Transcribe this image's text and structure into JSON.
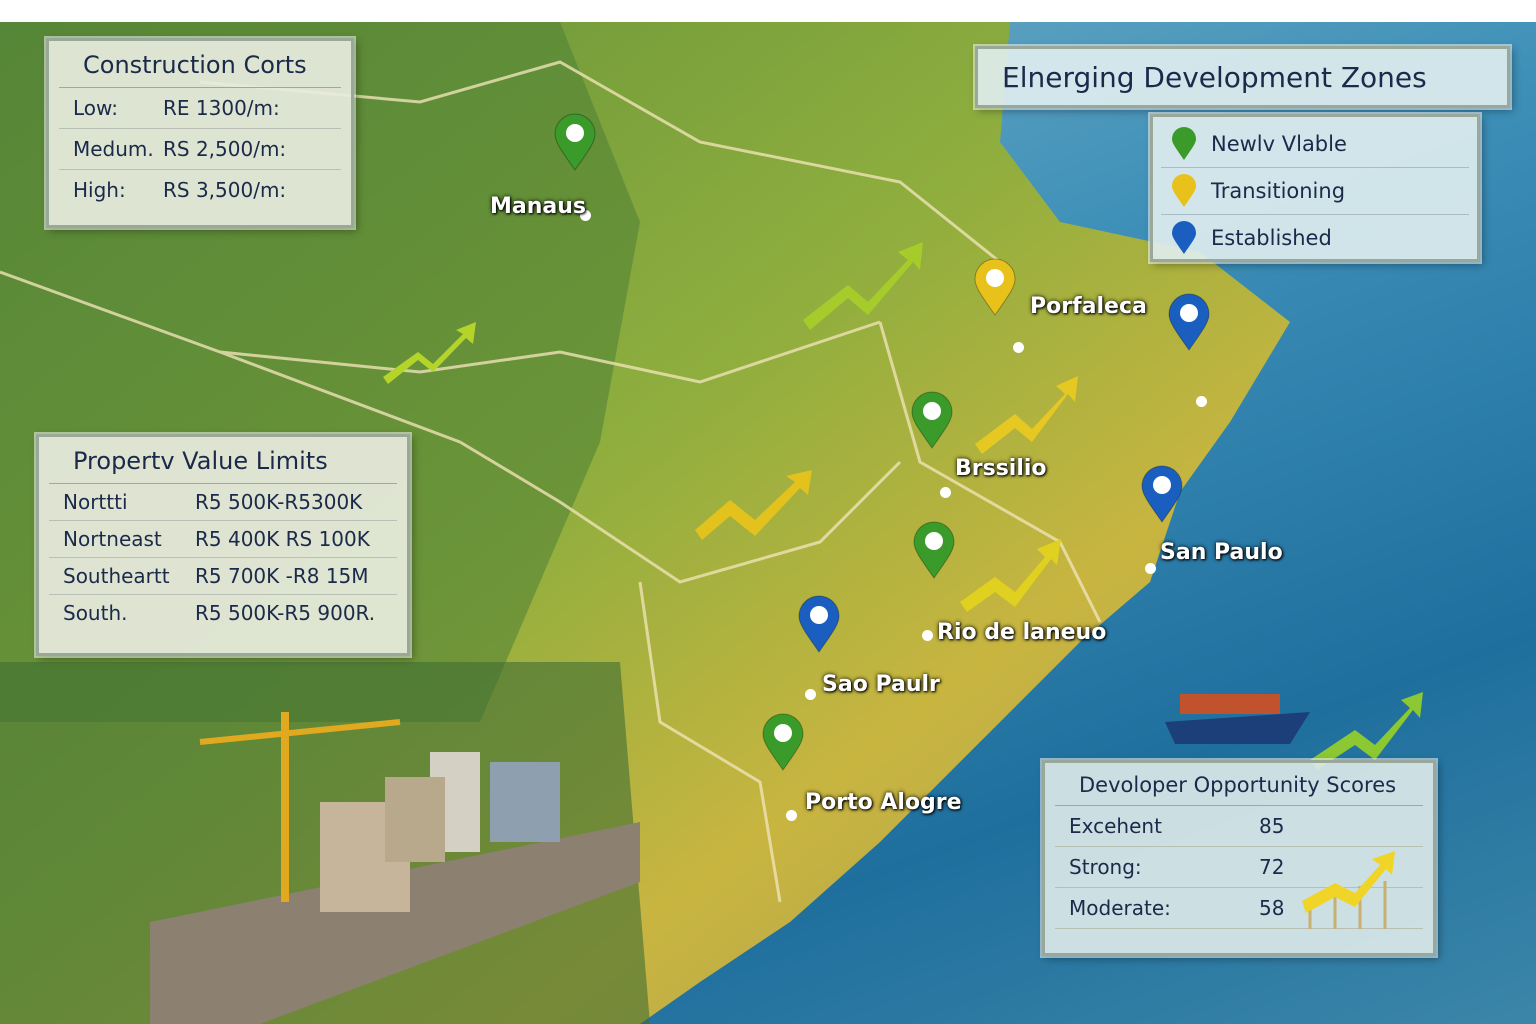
{
  "title": "Elnerging Development Zones",
  "colors": {
    "newly_viable": "#3a9a2a",
    "transitioning": "#e8c21a",
    "established": "#1a5fc0",
    "land": "#7ea640",
    "ocean": "#2a7bab"
  },
  "legend": [
    {
      "label": "Newlv Vlable",
      "color": "#3a9a2a",
      "icon": "map-pin-icon"
    },
    {
      "label": "Transitioning",
      "color": "#e8c21a",
      "icon": "map-pin-icon"
    },
    {
      "label": "Established",
      "color": "#1a5fc0",
      "icon": "map-pin-icon"
    }
  ],
  "construction_costs": {
    "title": "Construction Corts",
    "rows": [
      {
        "label": "Low:",
        "value": "RE 1300/m:"
      },
      {
        "label": "Medum.",
        "value": "RS 2,500/m:"
      },
      {
        "label": "High:",
        "value": "RS 3,500/m:"
      }
    ]
  },
  "property_limits": {
    "title": "Propertv Value Limits",
    "rows": [
      {
        "label": "Norttti",
        "value": "R5 500K-R5300K"
      },
      {
        "label": "Nortneast",
        "value": "R5 400K  RS 100K"
      },
      {
        "label": "Southeartt",
        "value": "R5 700K -R8 15M"
      },
      {
        "label": "South.",
        "value": "R5 500K-R5 900R."
      }
    ]
  },
  "opportunity_scores": {
    "title": "Devoloper Opportunity Scores",
    "rows": [
      {
        "label": "Excehent",
        "value": "85"
      },
      {
        "label": "Strong:",
        "value": "72"
      },
      {
        "label": "Moderate:",
        "value": "58"
      }
    ]
  },
  "cities": [
    {
      "name": "Manaus",
      "status": "newly_viable"
    },
    {
      "name": "Porfaleca",
      "status": "transitioning"
    },
    {
      "name": "",
      "status": "established"
    },
    {
      "name": "Brssilio",
      "status": "newly_viable"
    },
    {
      "name": "San Paulo",
      "status": "established"
    },
    {
      "name": "Rio de laneuo",
      "status": "newly_viable"
    },
    {
      "name": "Sao Paulr",
      "status": "established"
    },
    {
      "name": "Porto Alogre",
      "status": "newly_viable"
    }
  ]
}
